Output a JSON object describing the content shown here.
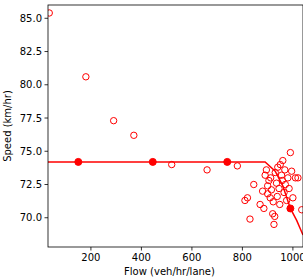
{
  "chart_data": {
    "type": "scatter",
    "x_label": "Flow (veh/hr/lane)",
    "y_label": "Speed (km/hr)",
    "xlim": [
      30,
      1040
    ],
    "ylim": [
      67.8,
      86.0
    ],
    "xticks": [
      200,
      400,
      600,
      800,
      1000
    ],
    "yticks": [
      {
        "value": 70,
        "label": "70.0"
      },
      {
        "value": 72.5,
        "label": "72.5"
      },
      {
        "value": 75,
        "label": "75.0"
      },
      {
        "value": 77.5,
        "label": "77.5"
      },
      {
        "value": 80,
        "label": "80.0"
      },
      {
        "value": 82.5,
        "label": "82.5"
      },
      {
        "value": 85,
        "label": "85.0"
      }
    ],
    "series": [
      {
        "type": "scatter",
        "marker": "open",
        "color": "#ff0000",
        "x": [
          35,
          180,
          290,
          370,
          520,
          660,
          780,
          810,
          820,
          830,
          845,
          870,
          880,
          885,
          890,
          895,
          900,
          900,
          905,
          910,
          912,
          915,
          920,
          922,
          925,
          928,
          930,
          935,
          938,
          940,
          945,
          948,
          950,
          955,
          958,
          960,
          965,
          968,
          970,
          975,
          980,
          985,
          990,
          995,
          1000,
          1010,
          1020,
          1035
        ],
        "values": [
          85.4,
          80.6,
          77.3,
          76.2,
          74.0,
          73.6,
          73.9,
          71.3,
          71.5,
          69.9,
          72.5,
          71.0,
          72.0,
          70.7,
          73.2,
          73.6,
          72.4,
          71.8,
          72.8,
          71.5,
          73.0,
          72.1,
          70.3,
          71.2,
          69.5,
          70.1,
          73.4,
          72.6,
          71.6,
          73.8,
          72.2,
          71.0,
          74.0,
          73.2,
          72.8,
          74.3,
          71.9,
          73.6,
          72.5,
          71.3,
          73.0,
          72.2,
          74.9,
          73.5,
          71.5,
          73.0,
          73.0,
          70.6
        ]
      },
      {
        "type": "line",
        "line_style": "solid",
        "color": "#ff0000",
        "x": [
          30,
          150,
          445,
          740,
          890,
          930,
          960,
          990,
          1015,
          1040
        ],
        "values": [
          74.2,
          74.2,
          74.2,
          74.2,
          74.2,
          73.5,
          72.4,
          70.7,
          69.8,
          68.7
        ]
      },
      {
        "type": "scatter",
        "marker": "filled",
        "color": "#ff0000",
        "x": [
          150,
          445,
          740,
          990
        ],
        "values": [
          74.2,
          74.2,
          74.2,
          70.7
        ]
      }
    ]
  }
}
